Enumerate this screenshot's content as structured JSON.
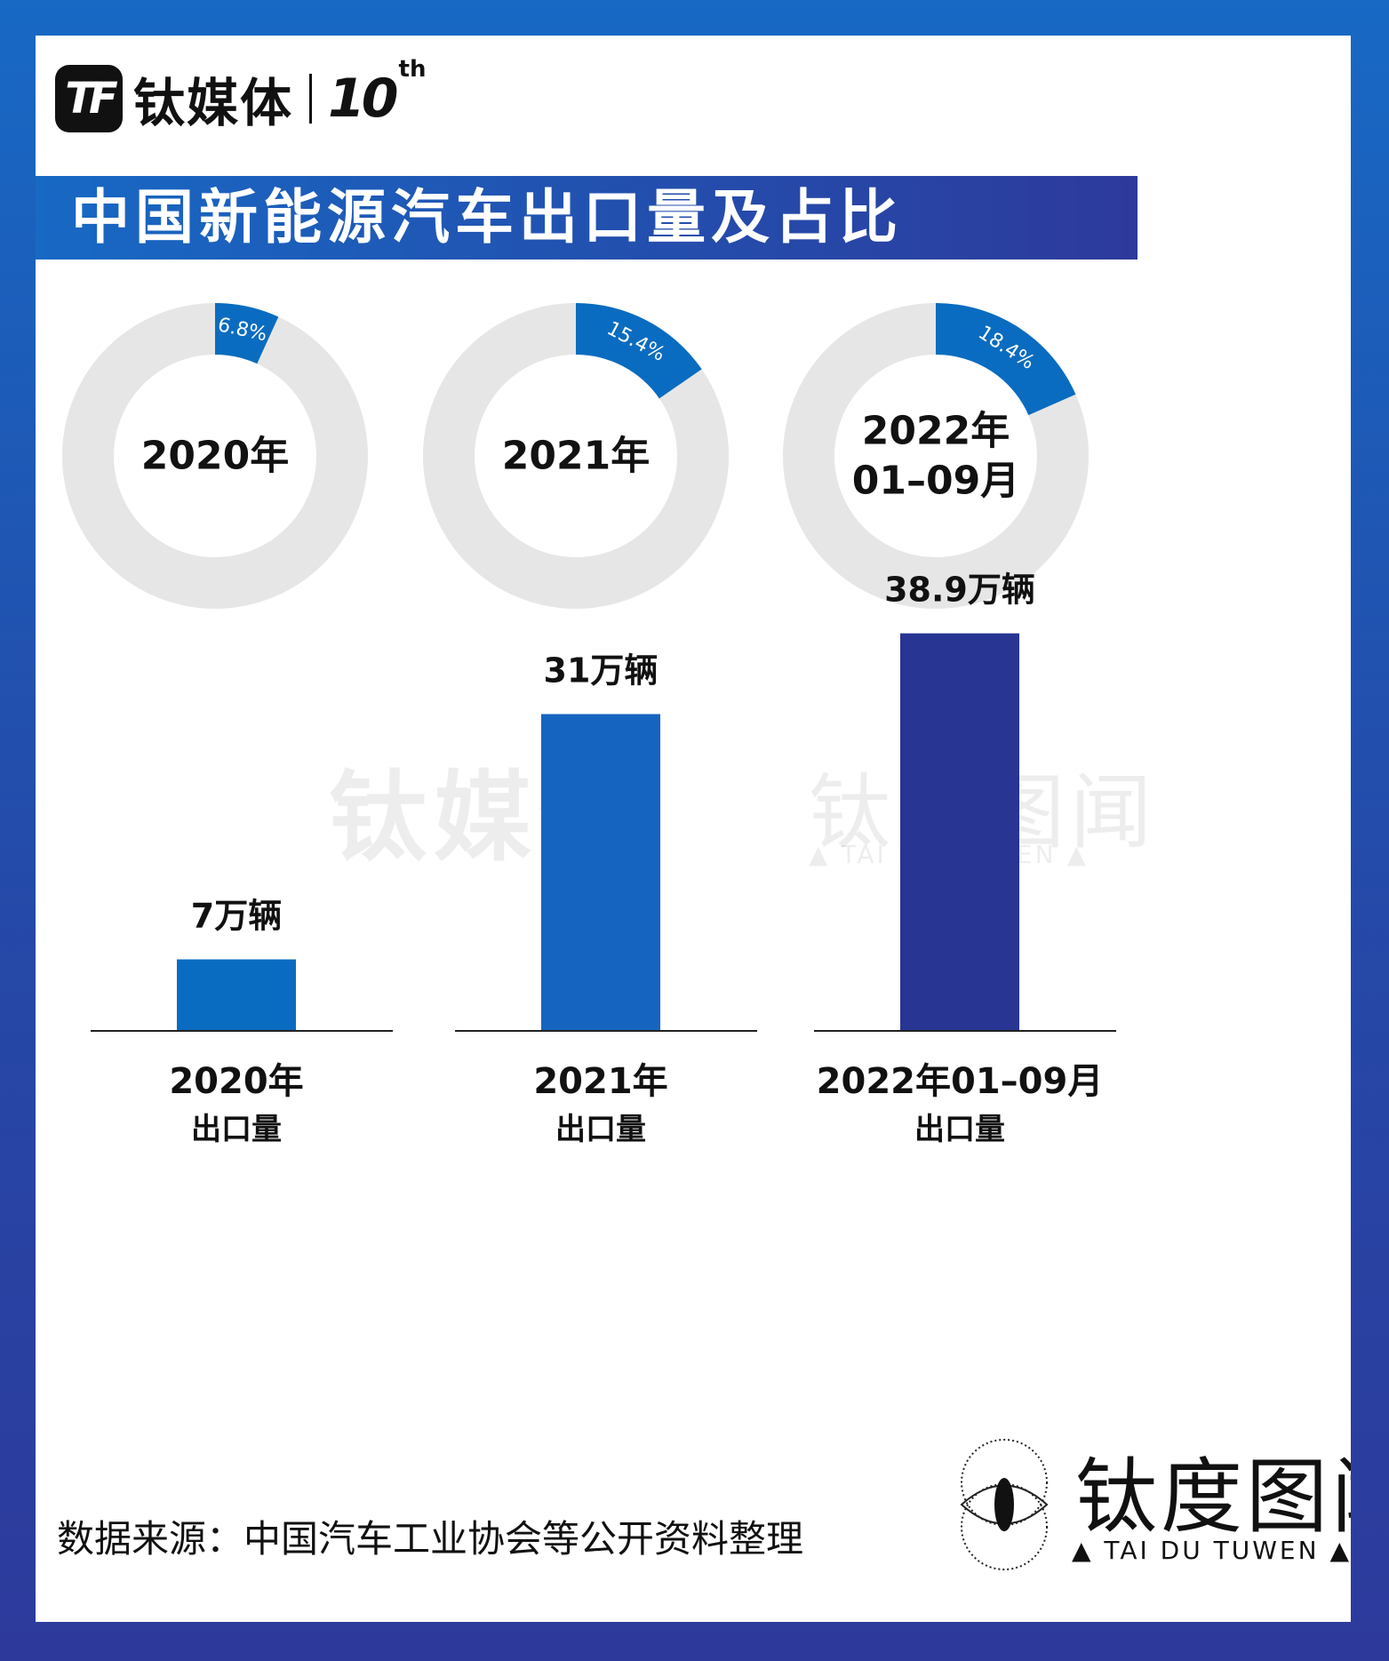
{
  "header": {
    "logo_mark": "TF",
    "logo_text": "钛媒体",
    "logo_anniv": "10",
    "logo_anniv_sup": "th"
  },
  "title": "中国新能源汽车出口量及占比",
  "watermark": {
    "cn": "钛媒体",
    "brand_cn": "钛度图闻",
    "brand_en": "▲ TAI DU TUWEN ▲"
  },
  "chart_data": [
    {
      "type": "pie",
      "title": "",
      "donuts": [
        {
          "center_label": [
            "2020年"
          ],
          "share": 6.8,
          "share_label": "6.8%"
        },
        {
          "center_label": [
            "2021年"
          ],
          "share": 15.4,
          "share_label": "15.4%"
        },
        {
          "center_label": [
            "2022年",
            "01–09月"
          ],
          "share": 18.4,
          "share_label": "18.4%"
        }
      ]
    },
    {
      "type": "bar",
      "title": "",
      "categories": [
        [
          "2020年",
          "出口量"
        ],
        [
          "2021年",
          "出口量"
        ],
        [
          "2022年01–09月",
          "出口量"
        ]
      ],
      "values": [
        7,
        31,
        38.9
      ],
      "value_labels": [
        "7万辆",
        "31万辆",
        "38.9万辆"
      ],
      "ylim": [
        0,
        40
      ]
    }
  ],
  "footer": {
    "source": "数据来源：中国汽车工业协会等公开资料整理",
    "brand_cn": "钛度图闻",
    "brand_en": "▲ TAI DU TUWEN ▲"
  },
  "colors": {
    "accent": "#0a6cc0",
    "bar": "#1565c0",
    "bar_dark": "#283593",
    "ring_bg": "#e6e6e6"
  }
}
